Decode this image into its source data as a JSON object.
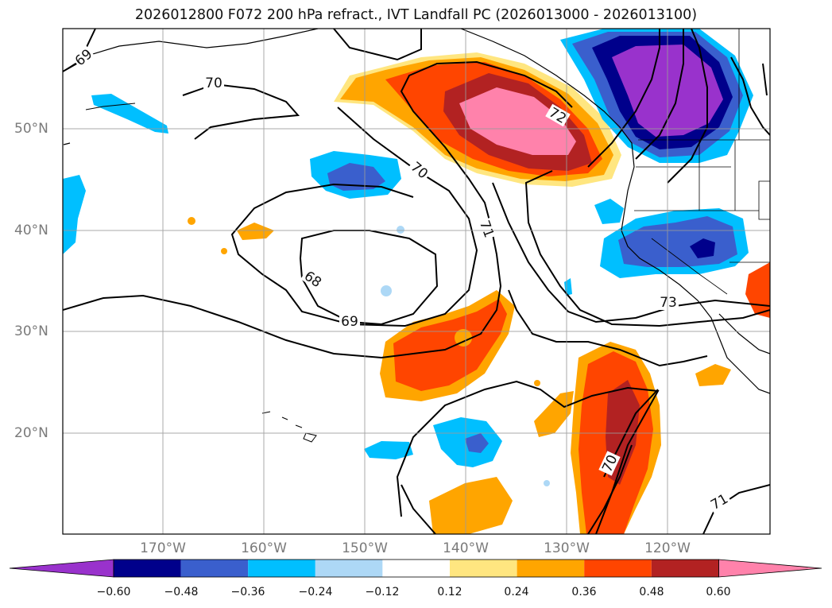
{
  "title": "2026012800 F072 200 hPa refract., IVT Landfall PC (2026013000 - 2026013100)",
  "map": {
    "lon_ticks": [
      "170°W",
      "160°W",
      "150°W",
      "140°W",
      "130°W",
      "120°W"
    ],
    "lat_ticks": [
      "50°N",
      "40°N",
      "30°N",
      "20°N"
    ],
    "contour_labels": [
      "69",
      "70",
      "72",
      "70",
      "71",
      "68",
      "69",
      "73",
      "70",
      "71"
    ]
  },
  "colorbar": {
    "tick_labels": [
      "−0.60",
      "−0.48",
      "−0.36",
      "−0.24",
      "−0.12",
      "0.12",
      "0.24",
      "0.36",
      "0.48",
      "0.60"
    ],
    "colors": [
      "#9932cc",
      "#00008b",
      "#3a5fcd",
      "#00bfff",
      "#add8f6",
      "#ffffff",
      "#ffe680",
      "#ffa500",
      "#ff4500",
      "#b22222",
      "#ff82ab"
    ]
  }
}
